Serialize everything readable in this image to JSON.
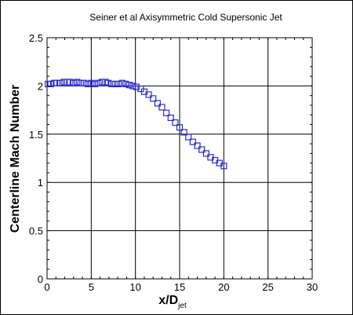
{
  "chart_data": {
    "type": "scatter",
    "title": "Seiner et al Axisymmetric Cold Supersonic Jet",
    "xlabel": "x/D",
    "xlabel_sub": "jet",
    "ylabel": "Centerline Mach Number",
    "xlim": [
      0,
      30
    ],
    "ylim": [
      0,
      2.5
    ],
    "x_ticks": [
      0,
      5,
      10,
      15,
      20,
      25,
      30
    ],
    "y_ticks": [
      0,
      0.5,
      1,
      1.5,
      2,
      2.5
    ],
    "x_tick_labels": [
      "0",
      "5",
      "10",
      "15",
      "20",
      "25",
      "30"
    ],
    "y_tick_labels": [
      "0",
      "0.5",
      "1",
      "1.5",
      "2",
      "2.5"
    ],
    "grid": true,
    "marker": "square-open",
    "marker_color": "#2b2bd0",
    "series": [
      {
        "points": [
          [
            0.1,
            2.02
          ],
          [
            0.4,
            2.02
          ],
          [
            0.8,
            2.03
          ],
          [
            1.1,
            2.03
          ],
          [
            1.5,
            2.03
          ],
          [
            1.9,
            2.04
          ],
          [
            2.3,
            2.04
          ],
          [
            2.6,
            2.04
          ],
          [
            3.0,
            2.03
          ],
          [
            3.4,
            2.04
          ],
          [
            3.8,
            2.03
          ],
          [
            4.2,
            2.03
          ],
          [
            4.6,
            2.02
          ],
          [
            5.0,
            2.03
          ],
          [
            5.4,
            2.02
          ],
          [
            5.8,
            2.03
          ],
          [
            6.2,
            2.04
          ],
          [
            6.6,
            2.04
          ],
          [
            6.9,
            2.03
          ],
          [
            7.3,
            2.02
          ],
          [
            7.7,
            2.02
          ],
          [
            8.1,
            2.02
          ],
          [
            8.5,
            2.03
          ],
          [
            8.9,
            2.02
          ],
          [
            9.3,
            2.01
          ],
          [
            9.7,
            2.0
          ],
          [
            10.1,
            1.99
          ],
          [
            10.6,
            1.97
          ],
          [
            11.0,
            1.94
          ],
          [
            11.5,
            1.91
          ],
          [
            12.0,
            1.87
          ],
          [
            12.5,
            1.82
          ],
          [
            13.0,
            1.78
          ],
          [
            13.5,
            1.72
          ],
          [
            14.0,
            1.67
          ],
          [
            14.5,
            1.62
          ],
          [
            15.0,
            1.57
          ],
          [
            15.5,
            1.52
          ],
          [
            16.0,
            1.47
          ],
          [
            16.5,
            1.42
          ],
          [
            17.0,
            1.38
          ],
          [
            17.5,
            1.34
          ],
          [
            18.0,
            1.3
          ],
          [
            18.5,
            1.26
          ],
          [
            19.0,
            1.23
          ],
          [
            19.5,
            1.2
          ],
          [
            20.0,
            1.17
          ]
        ]
      }
    ]
  }
}
